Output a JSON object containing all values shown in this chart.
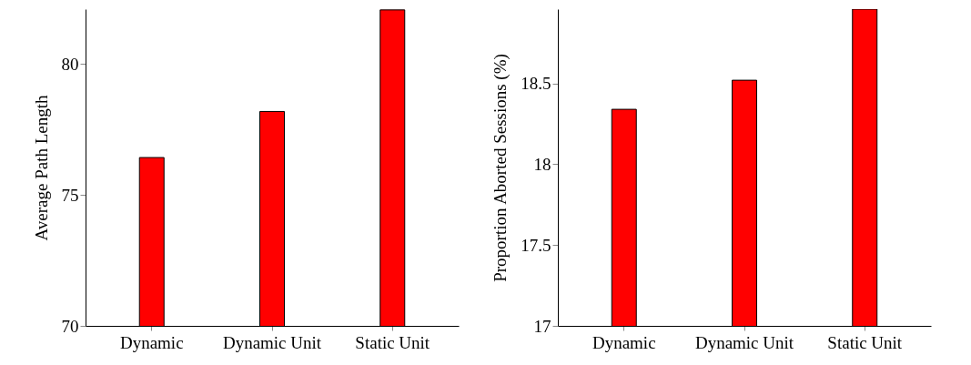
{
  "chart_data": [
    {
      "type": "bar",
      "ylabel": "Average Path Length",
      "categories": [
        "Dynamic",
        "Dynamic Unit",
        "Static Unit"
      ],
      "values": [
        76.43,
        78.19,
        82.07
      ],
      "color": "#ff0000",
      "ylim": [
        70,
        82.1
      ],
      "yticks": [
        70,
        75,
        80
      ],
      "grid": false
    },
    {
      "type": "bar",
      "ylabel": "Proportion Aborted Sessions (%)",
      "categories": [
        "Dynamic",
        "Dynamic Unit",
        "Static Unit"
      ],
      "values": [
        18.34,
        18.52,
        18.96
      ],
      "color": "#ff0000",
      "ylim": [
        17,
        18.96
      ],
      "yticks": [
        17,
        17.5,
        18,
        18.5
      ],
      "grid": false
    }
  ]
}
